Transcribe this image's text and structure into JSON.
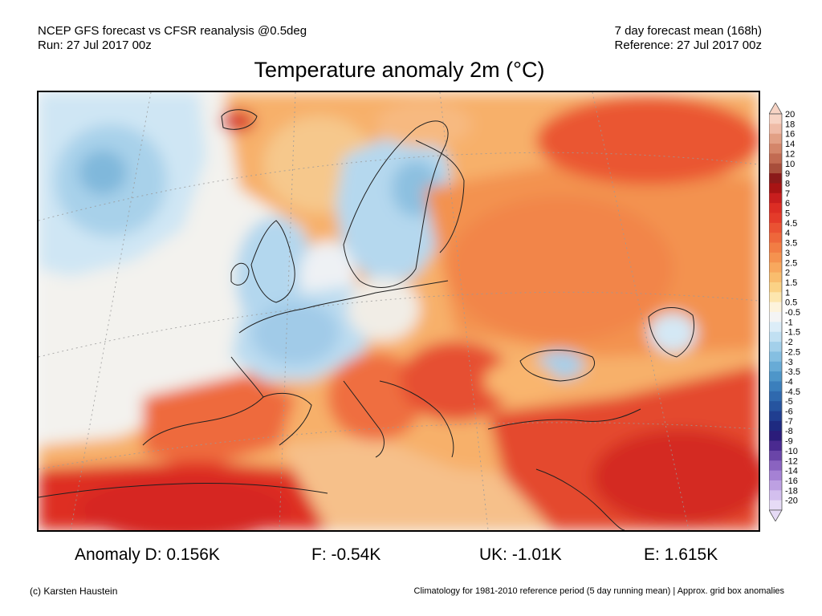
{
  "header": {
    "left_line1": "NCEP GFS forecast vs CFSR reanalysis @0.5deg",
    "left_line2": "Run: 27 Jul 2017 00z",
    "right_line1": "7 day forecast mean (168h)",
    "right_line2": "Reference: 27 Jul 2017 00z"
  },
  "title": "Temperature anomaly 2m (°C)",
  "colorbar": {
    "labels": [
      "20",
      "18",
      "16",
      "14",
      "12",
      "10",
      "9",
      "8",
      "7",
      "6",
      "5",
      "4.5",
      "4",
      "3.5",
      "3",
      "2.5",
      "2",
      "1.5",
      "1",
      "0.5",
      "-0.5",
      "-1",
      "-1.5",
      "-2",
      "-2.5",
      "-3",
      "-3.5",
      "-4",
      "-4.5",
      "-5",
      "-6",
      "-7",
      "-8",
      "-9",
      "-10",
      "-12",
      "-14",
      "-16",
      "-18",
      "-20"
    ],
    "colors": [
      "#f7d3c4",
      "#efbba7",
      "#e2a085",
      "#d4866a",
      "#c26b52",
      "#a84e3b",
      "#8b1a1a",
      "#a81414",
      "#c81e1e",
      "#dc2d24",
      "#e43b2a",
      "#ea5233",
      "#ee673b",
      "#f27d44",
      "#f5924f",
      "#f8a85e",
      "#f9bd6e",
      "#fbd286",
      "#fde6ae",
      "#fdf3dc",
      "#f4f4f4",
      "#dcedf8",
      "#c1e0f2",
      "#a3d0ea",
      "#85bfe1",
      "#68abd6",
      "#4e96c9",
      "#3b7fbc",
      "#2f69ae",
      "#26549f",
      "#203e90",
      "#1e2a80",
      "#2b1c7a",
      "#4a2a90",
      "#6a45a8",
      "#8a63c0",
      "#a581d4",
      "#bda0e2",
      "#d3bfee",
      "#e6dbf6"
    ]
  },
  "stats": {
    "d": "Anomaly D: 0.156K",
    "f": "F: -0.54K",
    "uk": "UK: -1.01K",
    "e": "E: 1.615K"
  },
  "footer": {
    "credit": "(c) Karsten Haustein",
    "climatology": "Climatology for 1981-2010 reference period (5 day running mean) | Approx. grid box anomalies"
  }
}
